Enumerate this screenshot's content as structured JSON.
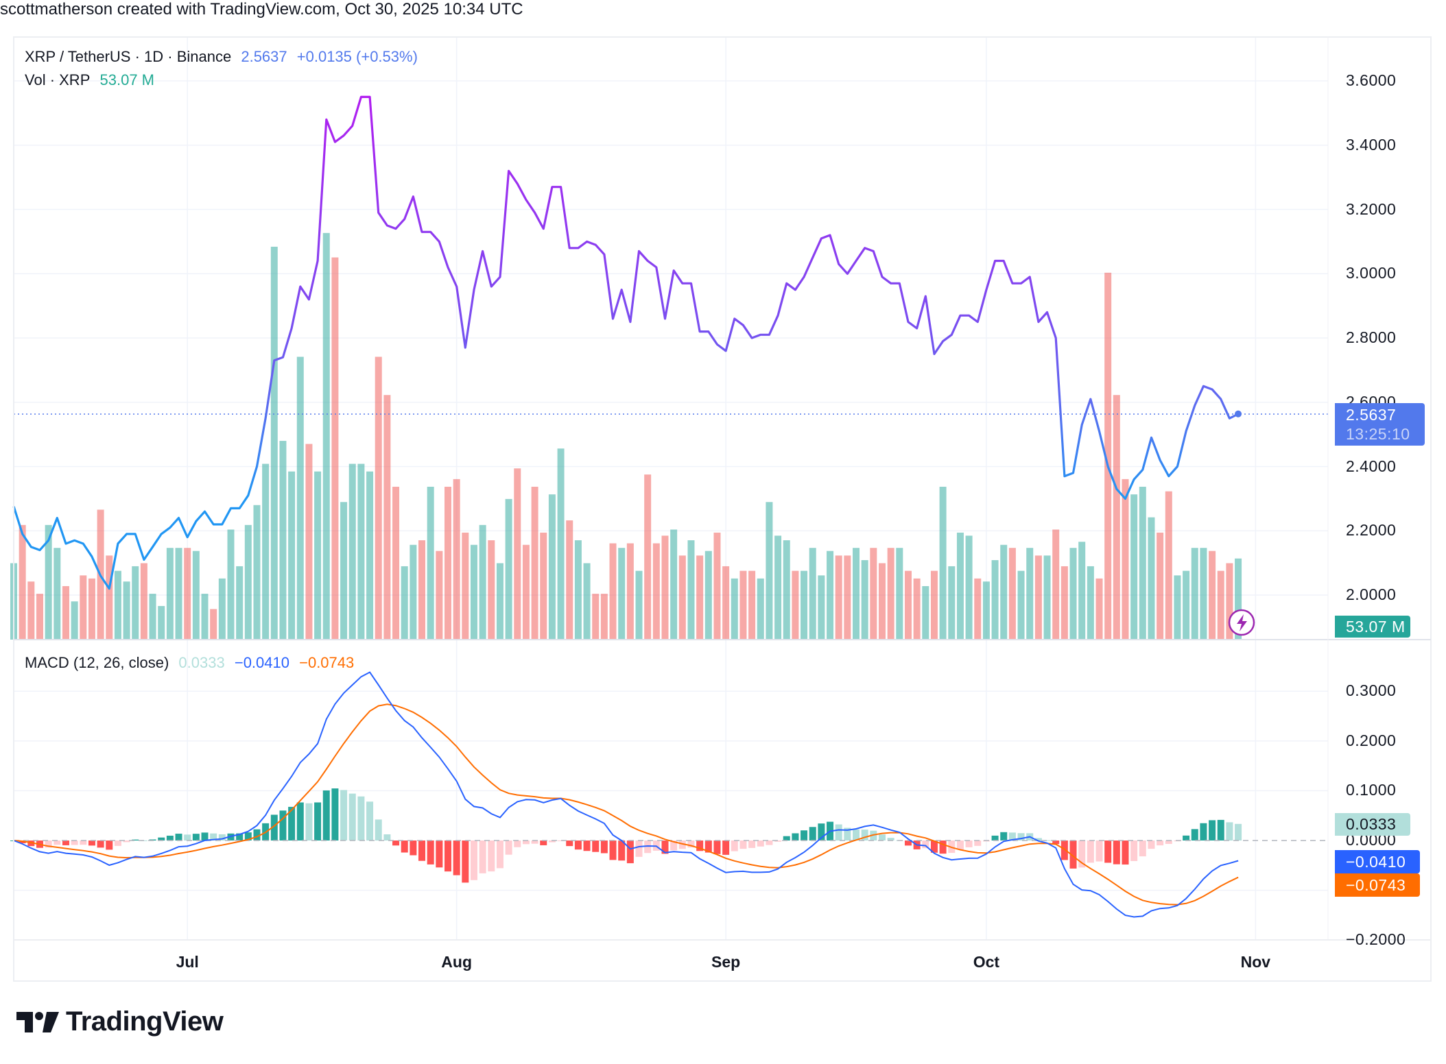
{
  "credit": "scottmatherson created with TradingView.com, Oct 30, 2025 10:34 UTC",
  "legend": {
    "symbol": "XRP / TetherUS · 1D · Binance",
    "price": "2.5637",
    "change": "+0.0135 (+0.53%)",
    "vol_label": "Vol · XRP",
    "vol_value": "53.07 M",
    "macd_label": "MACD (12, 26, close)",
    "macd_hist": "0.0333",
    "macd_line": "−0.0410",
    "macd_signal": "−0.0743"
  },
  "price_axis": [
    "3.6000",
    "3.4000",
    "3.2000",
    "3.0000",
    "2.8000",
    "2.6000",
    "2.4000",
    "2.2000",
    "2.0000"
  ],
  "macd_axis": [
    "0.3000",
    "0.2000",
    "0.1000",
    "0.0000",
    "−0.2000"
  ],
  "time_axis": [
    "Jul",
    "Aug",
    "Sep",
    "Oct",
    "Nov"
  ],
  "tags": {
    "price": "2.5637",
    "countdown": "13:25:10",
    "volume": "53.07 M",
    "hist": "0.0333",
    "macd": "−0.0410",
    "signal": "−0.0743"
  },
  "logo": "TradingView",
  "colors": {
    "price_up": "#b01ef0",
    "price_mid": "#7a4df0",
    "price_low": "#2196f3",
    "vol_up": "#26a69a",
    "vol_down": "#ef5350",
    "macd": "#2962ff",
    "signal": "#ff6d00",
    "hist_up_strong": "#26a69a",
    "hist_up_weak": "#b2dfdb",
    "hist_down_strong": "#ff5252",
    "hist_down_weak": "#ffcdd2",
    "tag_price": "#5279ec"
  },
  "chart_data": {
    "type": "line",
    "interval": "1D",
    "x_range": [
      "2025-06-11",
      "2025-10-30"
    ],
    "ylim": [
      1.92,
      3.66
    ],
    "grid": true,
    "close": [
      2.276,
      2.19,
      2.15,
      2.14,
      2.17,
      2.24,
      2.16,
      2.17,
      2.16,
      2.12,
      2.06,
      2.02,
      2.16,
      2.19,
      2.19,
      2.11,
      2.15,
      2.19,
      2.21,
      2.24,
      2.18,
      2.23,
      2.26,
      2.22,
      2.22,
      2.27,
      2.27,
      2.31,
      2.4,
      2.55,
      2.73,
      2.74,
      2.83,
      2.96,
      2.92,
      3.04,
      3.48,
      3.41,
      3.43,
      3.46,
      3.55,
      3.55,
      3.19,
      3.15,
      3.14,
      3.17,
      3.24,
      3.13,
      3.13,
      3.1,
      3.02,
      2.96,
      2.77,
      2.95,
      3.07,
      2.96,
      2.99,
      3.32,
      3.28,
      3.23,
      3.19,
      3.14,
      3.27,
      3.27,
      3.08,
      3.08,
      3.1,
      3.09,
      3.06,
      2.86,
      2.95,
      2.85,
      3.07,
      3.04,
      3.02,
      2.86,
      3.01,
      2.97,
      2.97,
      2.82,
      2.82,
      2.78,
      2.76,
      2.86,
      2.84,
      2.8,
      2.81,
      2.81,
      2.87,
      2.97,
      2.95,
      2.99,
      3.05,
      3.11,
      3.12,
      3.03,
      3.0,
      3.04,
      3.08,
      3.07,
      2.99,
      2.97,
      2.97,
      2.85,
      2.83,
      2.93,
      2.75,
      2.79,
      2.81,
      2.87,
      2.87,
      2.85,
      2.95,
      3.04,
      3.04,
      2.97,
      2.97,
      2.99,
      2.85,
      2.88,
      2.8,
      2.37,
      2.38,
      2.53,
      2.61,
      2.51,
      2.4,
      2.33,
      2.3,
      2.36,
      2.39,
      2.49,
      2.42,
      2.37,
      2.4,
      2.51,
      2.59,
      2.65,
      2.64,
      2.61,
      2.55,
      2.5637
    ],
    "volume_millions": [
      50,
      75,
      38,
      30,
      75,
      60,
      35,
      25,
      42,
      40,
      85,
      55,
      45,
      38,
      48,
      50,
      30,
      22,
      60,
      60,
      60,
      58,
      30,
      20,
      40,
      72,
      48,
      75,
      88,
      115,
      257,
      130,
      110,
      185,
      128,
      110,
      266,
      250,
      90,
      115,
      115,
      110,
      185,
      160,
      100,
      48,
      62,
      65,
      100,
      58,
      100,
      105,
      70,
      62,
      75,
      65,
      50,
      92,
      112,
      62,
      100,
      70,
      95,
      125,
      78,
      65,
      50,
      30,
      30,
      63,
      60,
      63,
      45,
      108,
      63,
      68,
      72,
      55,
      65,
      55,
      58,
      70,
      48,
      40,
      45,
      45,
      40,
      90,
      68,
      65,
      45,
      45,
      60,
      42,
      58,
      55,
      55,
      60,
      52,
      60,
      50,
      60,
      60,
      45,
      40,
      35,
      45,
      100,
      48,
      70,
      68,
      40,
      38,
      52,
      62,
      60,
      45,
      60,
      55,
      55,
      72,
      48,
      60,
      64,
      48,
      40,
      240,
      160,
      105,
      95,
      100,
      80,
      70,
      97,
      42,
      45,
      60,
      60,
      58,
      45,
      50,
      53.07
    ],
    "macd_params": [
      12,
      26,
      9
    ],
    "macd_ylim": [
      -0.2,
      0.35
    ],
    "last": {
      "close": 2.5637,
      "volume": "53.07M",
      "hist": 0.0333,
      "macd": -0.041,
      "signal": -0.0743
    }
  }
}
